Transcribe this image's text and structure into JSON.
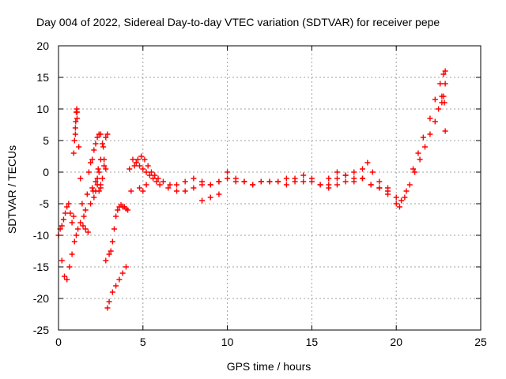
{
  "chart_data": {
    "type": "scatter",
    "title": "Day 004 of 2022, Sidereal Day-to-day VTEC variation (SDTVAR) for receiver pepe",
    "xlabel": "GPS time / hours",
    "ylabel": "SDTVAR / TECUs",
    "xlim": [
      0,
      25
    ],
    "ylim": [
      -25,
      20
    ],
    "xticks": [
      0,
      5,
      10,
      15,
      20,
      25
    ],
    "yticks": [
      -25,
      -20,
      -15,
      -10,
      -5,
      0,
      5,
      10,
      15,
      20
    ],
    "xtick_labels": [
      "0",
      "5",
      "10",
      "15",
      "20",
      "25"
    ],
    "ytick_labels": [
      "-25",
      "-20",
      "-15",
      "-10",
      "-5",
      "0",
      "5",
      "10",
      "15",
      "20"
    ],
    "grid": true,
    "marker": "plus",
    "color": "#ff0000",
    "series": [
      {
        "name": "SDTVAR",
        "x": [
          0.0,
          0.1,
          0.2,
          0.3,
          0.4,
          0.5,
          0.6,
          0.7,
          0.8,
          0.9,
          1.0,
          1.1,
          1.2,
          1.3,
          1.4,
          1.5,
          1.6,
          1.7,
          1.8,
          1.9,
          2.0,
          2.1,
          2.2,
          2.3,
          2.4,
          2.5,
          2.6,
          2.7,
          2.8,
          2.9,
          3.0,
          3.2,
          3.4,
          3.6,
          3.8,
          4.0,
          4.2,
          4.4,
          4.6,
          4.8,
          5.0,
          5.2,
          5.4,
          5.6,
          5.8,
          6.0,
          6.5,
          7.0,
          7.5,
          8.0,
          8.5,
          9.0,
          9.5,
          10.0,
          10.5,
          11.0,
          11.5,
          12.0,
          12.5,
          13.0,
          13.5,
          14.0,
          14.5,
          15.0,
          15.5,
          16.0,
          16.5,
          17.0,
          17.5,
          18.0,
          18.5,
          19.0,
          19.5,
          20.0,
          20.3,
          20.6,
          21.0,
          21.3,
          21.6,
          22.0,
          22.3,
          22.6,
          22.8,
          22.9,
          0.2,
          0.35,
          0.5,
          0.65,
          0.8,
          0.95,
          1.05,
          1.15,
          1.3,
          1.45,
          1.6,
          1.75,
          1.9,
          2.05,
          2.2,
          2.35,
          2.5,
          2.65,
          2.8,
          2.9,
          3.0,
          3.1,
          3.2,
          3.3,
          3.4,
          3.5,
          3.6,
          3.7,
          3.8,
          3.9,
          4.0,
          4.1,
          4.3,
          4.5,
          4.7,
          4.9,
          5.1,
          5.3,
          5.5,
          5.7,
          5.9,
          6.2,
          6.6,
          7.0,
          7.5,
          8.0,
          8.5,
          9.0,
          9.5,
          10.0,
          10.5,
          11.0,
          11.5,
          12.0,
          12.5,
          13.0,
          13.5,
          14.0,
          14.5,
          15.0,
          15.5,
          16.0,
          16.5,
          17.0,
          17.5,
          18.0,
          18.5,
          19.0,
          19.5,
          20.0,
          20.2,
          20.5,
          20.8,
          21.1,
          21.4,
          21.7,
          22.0,
          22.3,
          22.5,
          22.7,
          22.9,
          1.0,
          1.02,
          1.05,
          1.08,
          1.1,
          0.95,
          0.9,
          2.0,
          2.1,
          2.2,
          2.3,
          2.4,
          2.5,
          2.6,
          2.7,
          2.8,
          2.3,
          2.4,
          2.5,
          4.8,
          5.0,
          5.2,
          8.5,
          9.0,
          9.5,
          16.0,
          16.5,
          17.0,
          17.5,
          18.0,
          18.3,
          18.6,
          19.0,
          19.5,
          22.7,
          22.8,
          22.85,
          22.9
        ],
        "y": [
          -10.0,
          -9.0,
          -8.5,
          -7.5,
          -6.5,
          -5.5,
          -5.0,
          -6.5,
          -8.0,
          -7.0,
          7.0,
          9.5,
          4.0,
          -1.0,
          -5.0,
          -7.0,
          -6.0,
          -3.5,
          0.0,
          1.5,
          2.0,
          3.5,
          4.5,
          5.5,
          6.0,
          6.0,
          4.5,
          2.0,
          -14.0,
          -21.5,
          -20.5,
          -19.0,
          -18.0,
          -17.0,
          -16.0,
          -15.0,
          0.5,
          2.0,
          1.5,
          1.0,
          0.5,
          0.0,
          -0.5,
          -1.0,
          -1.5,
          -2.0,
          -2.5,
          -3.0,
          -3.0,
          -2.5,
          -2.0,
          -2.0,
          -1.5,
          -1.0,
          -1.5,
          -1.5,
          -2.0,
          -1.5,
          -1.5,
          -1.5,
          -1.0,
          -1.5,
          -1.5,
          -1.0,
          -2.0,
          -2.5,
          -2.0,
          -1.5,
          -1.5,
          -1.0,
          -2.0,
          -2.5,
          -3.5,
          -5.0,
          -4.5,
          -3.0,
          0.5,
          3.0,
          5.5,
          8.5,
          11.5,
          14.0,
          15.5,
          16.0,
          -14.0,
          -16.5,
          -17.0,
          -15.0,
          -13.0,
          -11.0,
          -10.0,
          -9.0,
          -8.0,
          -8.5,
          -9.0,
          -9.5,
          -5.0,
          -3.0,
          -1.5,
          0.5,
          2.0,
          4.0,
          5.5,
          6.0,
          -13.0,
          -12.5,
          -11.0,
          -9.0,
          -7.0,
          -6.0,
          -5.5,
          -5.2,
          -5.5,
          -5.5,
          -5.8,
          -6.0,
          -3.0,
          1.0,
          2.0,
          2.5,
          2.0,
          1.0,
          0.0,
          -0.5,
          -1.0,
          -1.5,
          -2.0,
          -2.0,
          -1.5,
          -1.0,
          -1.5,
          -2.0,
          -1.5,
          0.0,
          -1.0,
          -1.5,
          -2.0,
          -1.5,
          -1.5,
          -1.5,
          -2.0,
          -1.0,
          -0.5,
          -1.5,
          -2.0,
          -2.0,
          -1.0,
          -0.5,
          0.0,
          -1.0,
          -2.0,
          -2.5,
          -3.0,
          -4.0,
          -5.5,
          -4.0,
          -2.0,
          0.0,
          2.0,
          4.0,
          6.0,
          8.0,
          10.0,
          12.0,
          14.0,
          6.0,
          8.0,
          9.5,
          10.0,
          8.5,
          5.0,
          3.0,
          -2.5,
          -4.0,
          -3.0,
          -1.0,
          0.0,
          -2.0,
          -1.0,
          1.0,
          0.5,
          -2.0,
          -3.0,
          -2.5,
          -2.5,
          -3.0,
          -2.0,
          -4.5,
          -4.0,
          -3.5,
          -1.0,
          0.0,
          -0.5,
          -1.0,
          0.5,
          1.5,
          0.0,
          -1.5,
          -2.5,
          11.0,
          12.0,
          11.0,
          6.5
        ]
      }
    ]
  }
}
